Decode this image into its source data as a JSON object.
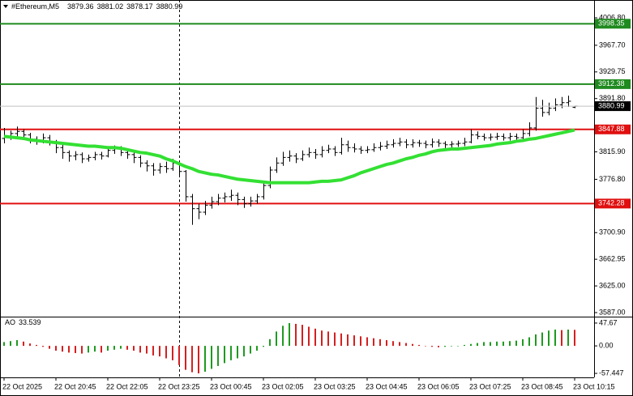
{
  "chart_data": {
    "type": "ohlc",
    "symbol": "#Ethereum,M5",
    "bar_color": "#000000",
    "categories": [
      "22 Oct 2025",
      null,
      null,
      null,
      null,
      null,
      null,
      null,
      "22 Oct 20:45",
      null,
      null,
      null,
      null,
      null,
      null,
      null,
      "22 Oct 22:05",
      null,
      null,
      null,
      null,
      null,
      null,
      null,
      "22 Oct 23:25",
      null,
      null,
      null,
      null,
      null,
      null,
      null,
      "23 Oct 00:45",
      null,
      null,
      null,
      null,
      null,
      null,
      null,
      "23 Oct 02:05",
      null,
      null,
      null,
      null,
      null,
      null,
      null,
      "23 Oct 03:25",
      null,
      null,
      null,
      null,
      null,
      null,
      null,
      "23 Oct 04:45",
      null,
      null,
      null,
      null,
      null,
      null,
      null,
      "23 Oct 06:05",
      null,
      null,
      null,
      null,
      null,
      null,
      null,
      "23 Oct 07:25",
      null,
      null,
      null,
      null,
      null,
      null,
      null,
      "23 Oct 08:45",
      null,
      null,
      null,
      null,
      null,
      null,
      null,
      "23 Oct 10:15"
    ],
    "open": [
      3835,
      3838,
      3842,
      3845,
      3840,
      3834,
      3832,
      3836,
      3830,
      3822,
      3815,
      3810,
      3812,
      3806,
      3808,
      3812,
      3810,
      3818,
      3820,
      3815,
      3812,
      3808,
      3800,
      3796,
      3790,
      3795,
      3792,
      3800,
      3788,
      3752,
      3735,
      3730,
      3740,
      3745,
      3750,
      3752,
      3754,
      3748,
      3742,
      3746,
      3752,
      3768,
      3790,
      3800,
      3808,
      3810,
      3806,
      3812,
      3815,
      3812,
      3818,
      3820,
      3815,
      3826,
      3822,
      3820,
      3818,
      3819,
      3822,
      3824,
      3826,
      3828,
      3830,
      3826,
      3829,
      3828,
      3826,
      3830,
      3828,
      3826,
      3827,
      3828,
      3830,
      3840,
      3838,
      3836,
      3837,
      3838,
      3836,
      3838,
      3836,
      3842,
      3850,
      3878,
      3872,
      3878,
      3883,
      3886,
      3879.36
    ],
    "high": [
      3850,
      3846,
      3852,
      3848,
      3843,
      3838,
      3842,
      3840,
      3833,
      3826,
      3818,
      3817,
      3815,
      3812,
      3816,
      3816,
      3823,
      3825,
      3824,
      3818,
      3816,
      3811,
      3804,
      3800,
      3800,
      3802,
      3806,
      3803,
      3790,
      3756,
      3742,
      3746,
      3752,
      3756,
      3758,
      3762,
      3758,
      3752,
      3752,
      3756,
      3774,
      3795,
      3808,
      3816,
      3818,
      3814,
      3818,
      3822,
      3820,
      3824,
      3826,
      3824,
      3836,
      3832,
      3828,
      3824,
      3824,
      3828,
      3830,
      3832,
      3834,
      3836,
      3834,
      3834,
      3833,
      3832,
      3835,
      3834,
      3831,
      3831,
      3832,
      3836,
      3848,
      3845,
      3842,
      3842,
      3843,
      3842,
      3843,
      3842,
      3848,
      3858,
      3894,
      3890,
      3886,
      3892,
      3894,
      3896,
      3881.02
    ],
    "low": [
      3828,
      3833,
      3838,
      3836,
      3828,
      3826,
      3828,
      3825,
      3814,
      3806,
      3802,
      3804,
      3800,
      3802,
      3804,
      3805,
      3808,
      3813,
      3810,
      3806,
      3800,
      3794,
      3788,
      3782,
      3785,
      3786,
      3789,
      3780,
      3745,
      3712,
      3720,
      3726,
      3735,
      3740,
      3744,
      3746,
      3740,
      3736,
      3738,
      3742,
      3748,
      3764,
      3786,
      3796,
      3802,
      3800,
      3803,
      3808,
      3806,
      3808,
      3814,
      3810,
      3812,
      3816,
      3815,
      3813,
      3814,
      3816,
      3818,
      3820,
      3822,
      3824,
      3821,
      3822,
      3823,
      3821,
      3822,
      3823,
      3821,
      3822,
      3823,
      3824,
      3828,
      3834,
      3832,
      3832,
      3833,
      3832,
      3832,
      3831,
      3832,
      3838,
      3846,
      3866,
      3868,
      3874,
      3878,
      3880,
      3878.17
    ],
    "close": [
      3838,
      3842,
      3845,
      3840,
      3834,
      3832,
      3836,
      3830,
      3822,
      3815,
      3810,
      3812,
      3806,
      3808,
      3812,
      3810,
      3818,
      3820,
      3815,
      3812,
      3808,
      3800,
      3796,
      3790,
      3795,
      3792,
      3800,
      3788,
      3752,
      3735,
      3730,
      3740,
      3745,
      3750,
      3752,
      3754,
      3748,
      3742,
      3746,
      3752,
      3768,
      3790,
      3800,
      3808,
      3810,
      3806,
      3812,
      3815,
      3812,
      3818,
      3820,
      3815,
      3826,
      3822,
      3820,
      3818,
      3819,
      3822,
      3824,
      3826,
      3828,
      3830,
      3826,
      3829,
      3828,
      3826,
      3830,
      3828,
      3826,
      3827,
      3828,
      3830,
      3840,
      3838,
      3836,
      3837,
      3838,
      3836,
      3838,
      3836,
      3842,
      3850,
      3878,
      3872,
      3878,
      3883,
      3886,
      3888,
      3880.99
    ],
    "ma": {
      "color": "#33e033",
      "values": [
        3838,
        3837,
        3836,
        3835,
        3833,
        3832,
        3831,
        3830,
        3829,
        3828,
        3827,
        3826,
        3825,
        3824,
        3824,
        3823,
        3822,
        3822,
        3821,
        3819,
        3817,
        3815,
        3814,
        3812,
        3810,
        3806,
        3803,
        3799,
        3795,
        3792,
        3788,
        3786,
        3784,
        3783,
        3781,
        3779,
        3777,
        3776,
        3775,
        3774,
        3773,
        3772,
        3772,
        3772,
        3772,
        3772,
        3772,
        3772,
        3773,
        3774,
        3774,
        3775,
        3776,
        3779,
        3782,
        3786,
        3789,
        3792,
        3795,
        3798,
        3800,
        3803,
        3806,
        3808,
        3811,
        3813,
        3816,
        3818,
        3819,
        3820,
        3820,
        3821,
        3822,
        3823,
        3824,
        3825,
        3827,
        3828,
        3829,
        3831,
        3832,
        3834,
        3835,
        3837,
        3839,
        3841,
        3843,
        3845,
        3847
      ]
    },
    "levels": [
      {
        "value": 3998.35,
        "color": "#1f8a1f"
      },
      {
        "value": 3912.38,
        "color": "#1f8a1f"
      },
      {
        "value": 3847.88,
        "color": "#e01010"
      },
      {
        "value": 3742.28,
        "color": "#e01010"
      }
    ],
    "ylim": [
      3582.4,
      4026.4
    ],
    "yticks": [
      {
        "value": 4006.8,
        "label": "4006.80"
      },
      {
        "value": 3967.7,
        "label": "3967.70"
      },
      3929.75,
      {
        "value": 3891.8,
        "label": "3891.80"
      },
      {
        "value": 3815.9,
        "label": "3815.90"
      },
      {
        "value": 3776.8,
        "label": "3776.80"
      },
      {
        "value": 3700.9,
        "label": "3700.90"
      },
      3662.95,
      {
        "value": 3625,
        "label": "3625.00"
      },
      {
        "value": 3587,
        "label": "3587.00"
      }
    ],
    "ao": {
      "name": "AO",
      "up_color": "#1f9a1f",
      "down_color": "#d42020",
      "values": [
        8,
        10,
        12,
        9,
        5,
        2,
        -2,
        -6,
        -10,
        -12,
        -14,
        -15,
        -16,
        -14,
        -12,
        -14,
        -10,
        -8,
        -6,
        -8,
        -10,
        -14,
        -16,
        -20,
        -22,
        -26,
        -30,
        -40,
        -50,
        -55,
        -57.447,
        -54,
        -48,
        -42,
        -36,
        -30,
        -26,
        -22,
        -16,
        -10,
        -2,
        14,
        30,
        42,
        47.67,
        46,
        44,
        40,
        36,
        32,
        30,
        28,
        26,
        24,
        22,
        20,
        18,
        16,
        14,
        12,
        10,
        8,
        6,
        4,
        2,
        0,
        -2,
        -3,
        -2,
        -1,
        0,
        2,
        4,
        6,
        8,
        8,
        9,
        9,
        10,
        11,
        14,
        18,
        24,
        28,
        32,
        34,
        33,
        34,
        33.539
      ]
    },
    "y2lim": [
      -64.1,
      57.7
    ],
    "y2ticks": [
      47.67,
      {
        "value": 0,
        "label": "0.00"
      },
      -57.447
    ]
  }
}
